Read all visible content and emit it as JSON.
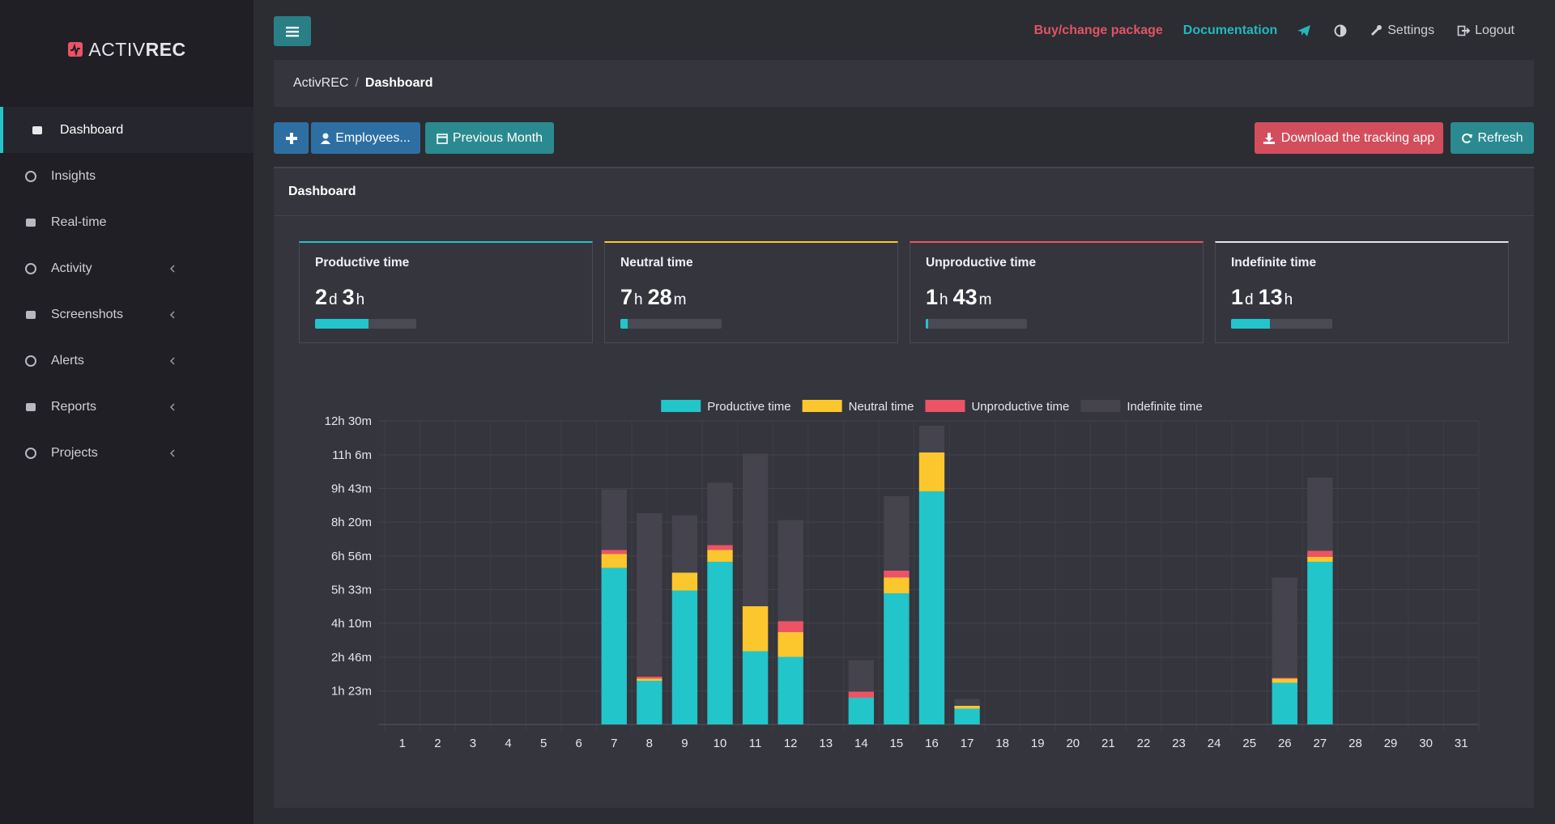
{
  "sidebar": {
    "logo": {
      "light": "ACTIV",
      "bold": "REC"
    },
    "menu": [
      {
        "label": "Dashboard",
        "active": true
      },
      {
        "label": "Insights"
      },
      {
        "label": "Real-time"
      },
      {
        "label": "Activity",
        "submenu": true
      },
      {
        "label": "Screenshots",
        "submenu": true
      },
      {
        "label": "Alerts",
        "submenu": true
      },
      {
        "label": "Reports",
        "submenu": true
      },
      {
        "label": "Projects",
        "submenu": true
      }
    ]
  },
  "topbar": {
    "links": [
      "Buy/change package",
      "Documentation",
      "Settings",
      "Logout"
    ]
  },
  "breadcrumb": {
    "root": "ActivREC",
    "separator": "/",
    "current": "Dashboard"
  },
  "toolbar": {
    "left": [
      "Employees...",
      "Previous Month"
    ],
    "right": [
      "Download the tracking app",
      "Refresh"
    ]
  },
  "panel": {
    "title": "Dashboard"
  },
  "cards": [
    {
      "title": "Productive time",
      "value": [
        {
          "num": "2",
          "unit": "d"
        },
        {
          "num": "3",
          "unit": "h"
        }
      ],
      "progress": 53,
      "accent": "#22c5c9"
    },
    {
      "title": "Neutral time",
      "value": [
        {
          "num": "7",
          "unit": "h"
        },
        {
          "num": "28",
          "unit": "m"
        }
      ],
      "progress": 7,
      "accent": "#fcc72d"
    },
    {
      "title": "Unproductive time",
      "value": [
        {
          "num": "1",
          "unit": "h"
        },
        {
          "num": "43",
          "unit": "m"
        }
      ],
      "progress": 2,
      "accent": "#ec5466"
    },
    {
      "title": "Indefinite time",
      "value": [
        {
          "num": "1",
          "unit": "d"
        },
        {
          "num": "13",
          "unit": "h"
        }
      ],
      "progress": 38,
      "accent": "#e4e4e8"
    }
  ],
  "chart_data": {
    "type": "stacked-bar",
    "categories": [
      "1",
      "2",
      "3",
      "4",
      "5",
      "6",
      "7",
      "8",
      "9",
      "10",
      "11",
      "12",
      "13",
      "14",
      "15",
      "16",
      "17",
      "18",
      "19",
      "20",
      "21",
      "22",
      "23",
      "24",
      "25",
      "26",
      "27",
      "28",
      "29",
      "30",
      "31"
    ],
    "series": [
      {
        "name": "Productive time",
        "color": "#22c5c9",
        "values": [
          0,
          0,
          0,
          0,
          0,
          0,
          387,
          108,
          331,
          402,
          181,
          167,
          0,
          66,
          324,
          576,
          39,
          0,
          0,
          0,
          0,
          0,
          0,
          0,
          0,
          103,
          402,
          0,
          0,
          0,
          0
        ]
      },
      {
        "name": "Neutral time",
        "color": "#fcc72d",
        "values": [
          0,
          0,
          0,
          0,
          0,
          0,
          34,
          5,
          44,
          29,
          111,
          61,
          0,
          0,
          39,
          96,
          7,
          0,
          0,
          0,
          0,
          0,
          0,
          0,
          0,
          10,
          12,
          0,
          0,
          0,
          0
        ]
      },
      {
        "name": "Unproductive time",
        "color": "#ec5466",
        "values": [
          0,
          0,
          0,
          0,
          0,
          0,
          10,
          5,
          0,
          12,
          0,
          27,
          0,
          15,
          17,
          0,
          0,
          0,
          0,
          0,
          0,
          0,
          0,
          0,
          0,
          2,
          15,
          0,
          0,
          0,
          0
        ]
      },
      {
        "name": "Indefinite time",
        "color": "#45434d",
        "values": [
          0,
          0,
          0,
          0,
          0,
          0,
          150,
          404,
          142,
          154,
          377,
          250,
          0,
          78,
          184,
          66,
          17,
          0,
          0,
          0,
          0,
          0,
          0,
          0,
          0,
          248,
          181,
          0,
          0,
          0,
          0
        ]
      }
    ],
    "ylim": [
      0,
      750
    ],
    "yticks": [
      {
        "value": 83,
        "label": "1h 23m"
      },
      {
        "value": 166,
        "label": "2h 46m"
      },
      {
        "value": 250,
        "label": "4h 10m"
      },
      {
        "value": 333,
        "label": "5h 33m"
      },
      {
        "value": 416,
        "label": "6h 56m"
      },
      {
        "value": 500,
        "label": "8h 20m"
      },
      {
        "value": 583,
        "label": "9h 43m"
      },
      {
        "value": 666,
        "label": "11h 6m"
      },
      {
        "value": 750,
        "label": "12h 30m"
      }
    ],
    "grid": true,
    "legend": "top"
  }
}
